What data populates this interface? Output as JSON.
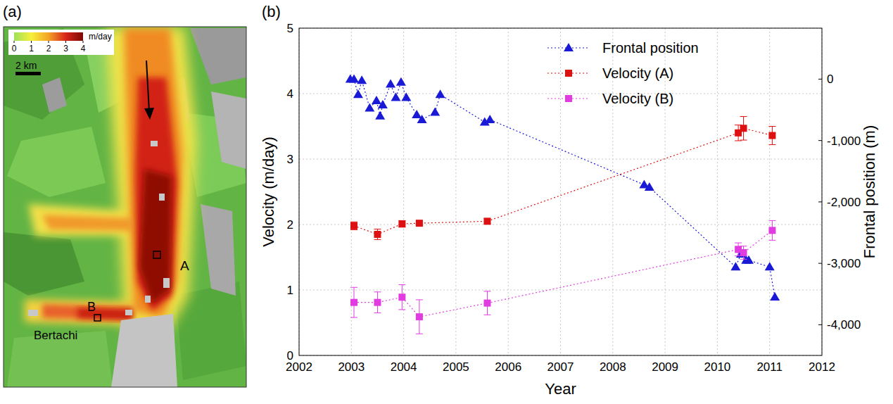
{
  "map": {
    "panel_label": "(a)",
    "colorbar": {
      "range": [
        0,
        4
      ],
      "ticks": [
        0,
        1,
        2,
        3,
        4
      ],
      "unit": "m/day"
    },
    "scale_bar": "2 km",
    "labels": [
      "A",
      "B",
      "Bertachi"
    ]
  },
  "chart_data": {
    "type": "line",
    "panel_label": "(b)",
    "x_label": "Year",
    "y_label": "Velocity (m/day)",
    "y2_label": "Frontal position (m)",
    "xlim": [
      2002,
      2012
    ],
    "xticks": [
      2002,
      2003,
      2004,
      2005,
      2006,
      2007,
      2008,
      2009,
      2010,
      2011,
      2012
    ],
    "ylim": [
      0,
      5
    ],
    "yticks": [
      0,
      1,
      2,
      3,
      4,
      5
    ],
    "y2lim": [
      -4500,
      830
    ],
    "y2ticks": [
      0,
      {
        "value": -1000,
        "label": "-1,000"
      },
      {
        "value": -2000,
        "label": "-2,000"
      },
      {
        "value": -3000,
        "label": "-3,000"
      },
      {
        "value": -4000,
        "label": "-4,000"
      }
    ],
    "grid": true,
    "legend": "upper right",
    "series": [
      {
        "name": "Frontal position",
        "color": "#1a1ad6",
        "marker": "triangle",
        "line_style": "dotted",
        "axis": "y2",
        "x": [
          2002.98,
          2003.05,
          2003.13,
          2003.2,
          2003.35,
          2003.48,
          2003.55,
          2003.6,
          2003.75,
          2003.85,
          2003.95,
          2004.05,
          2004.25,
          2004.35,
          2004.6,
          2004.7,
          2005.55,
          2005.65,
          2008.6,
          2008.7,
          2010.35,
          2010.45,
          2010.55,
          2010.6,
          2011.0,
          2011.1
        ],
        "values": [
          0,
          0,
          -250,
          -20,
          -470,
          -350,
          -600,
          -420,
          -80,
          -300,
          -50,
          -300,
          -580,
          -660,
          -540,
          -250,
          -700,
          -660,
          -1720,
          -1760,
          -3060,
          -2850,
          -2950,
          -2950,
          -3060,
          -3550
        ]
      },
      {
        "name": "Velocity (A)",
        "color": "#dd1111",
        "marker": "square",
        "line_style": "dotted",
        "x": [
          2003.05,
          2003.5,
          2003.97,
          2004.3,
          2005.6,
          2010.4,
          2010.5,
          2011.05
        ],
        "values": [
          1.98,
          1.85,
          2.01,
          2.02,
          2.05,
          3.4,
          3.47,
          3.36
        ],
        "errors": [
          0.06,
          0.08,
          0.05,
          0.03,
          0.04,
          0.12,
          0.18,
          0.14
        ]
      },
      {
        "name": "Velocity (B)",
        "color": "#e03ce0",
        "marker": "square",
        "line_style": "dotted",
        "x": [
          2003.05,
          2003.5,
          2003.97,
          2004.3,
          2005.6,
          2010.4,
          2010.5,
          2011.05
        ],
        "values": [
          0.81,
          0.81,
          0.89,
          0.59,
          0.8,
          1.62,
          1.57,
          1.91
        ],
        "errors": [
          0.23,
          0.16,
          0.19,
          0.26,
          0.18,
          0.1,
          0.1,
          0.15
        ]
      }
    ]
  }
}
